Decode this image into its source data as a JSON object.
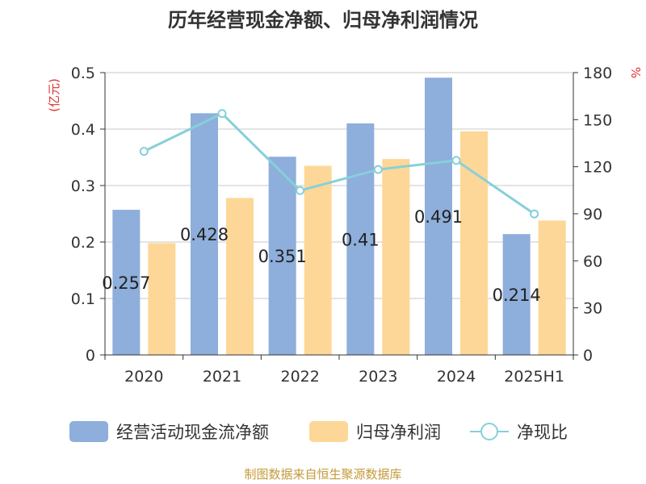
{
  "chart_data": {
    "type": "bar",
    "title": "历年经营现金净额、归母净利润情况",
    "left_unit": "(亿元)",
    "right_unit": "%",
    "categories": [
      "2020",
      "2021",
      "2022",
      "2023",
      "2024",
      "2025H1"
    ],
    "ylim": [
      0,
      0.5
    ],
    "y_ticks": [
      "0",
      "0.1",
      "0.2",
      "0.3",
      "0.4",
      "0.5"
    ],
    "y2lim": [
      0,
      180
    ],
    "y2_ticks": [
      "0",
      "30",
      "60",
      "90",
      "120",
      "150",
      "180"
    ],
    "grid": true,
    "legend_position": "bottom",
    "series": [
      {
        "name": "经营活动现金流净额",
        "type": "bar",
        "axis": "left",
        "color": "#8eaedb",
        "values": [
          0.257,
          0.428,
          0.351,
          0.41,
          0.491,
          0.214
        ],
        "labels": [
          "0.257",
          "0.428",
          "0.351",
          "0.41",
          "0.491",
          "0.214"
        ]
      },
      {
        "name": "归母净利润",
        "type": "bar",
        "axis": "left",
        "color": "#fdd797",
        "values": [
          0.198,
          0.278,
          0.335,
          0.347,
          0.396,
          0.238
        ]
      },
      {
        "name": "净现比",
        "type": "line",
        "axis": "right",
        "color": "#86d0d9",
        "values": [
          129.8,
          153.9,
          104.8,
          118.2,
          124.0,
          89.9
        ]
      }
    ],
    "source": "制图数据来自恒生聚源数据库"
  }
}
